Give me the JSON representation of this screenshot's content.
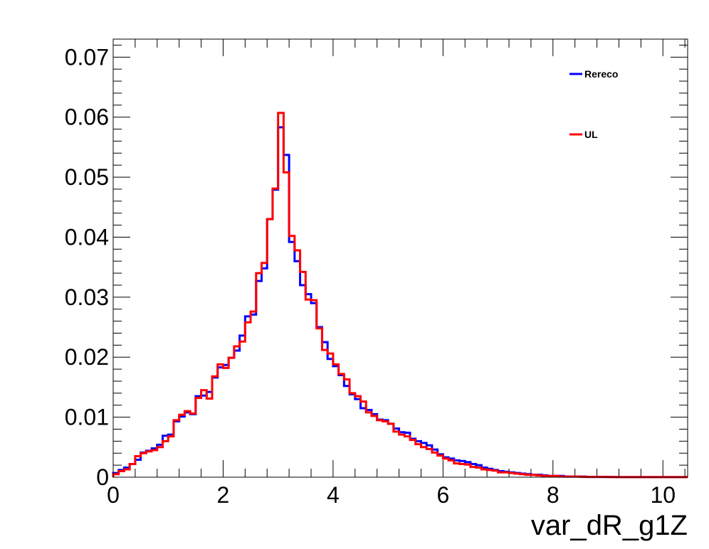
{
  "chart_data": {
    "type": "line",
    "title": "",
    "xlabel": "var_dR_g1Z",
    "ylabel": "",
    "xlim": [
      0,
      10.45
    ],
    "ylim": [
      0,
      0.073
    ],
    "x_ticks": [
      0,
      2,
      4,
      6,
      8,
      10
    ],
    "x_tick_labels": [
      "0",
      "2",
      "4",
      "6",
      "8",
      "10"
    ],
    "y_ticks": [
      0,
      0.01,
      0.02,
      0.03,
      0.04,
      0.05,
      0.06,
      0.07
    ],
    "y_tick_labels": [
      "0",
      "0.01",
      "0.02",
      "0.03",
      "0.04",
      "0.05",
      "0.06",
      "0.07"
    ],
    "legend_position": "top-right",
    "grid": false,
    "bin_width": 0.1,
    "series": [
      {
        "name": "Rereco",
        "color": "#0000ff",
        "values": [
          0.0007,
          0.0012,
          0.0016,
          0.0022,
          0.0029,
          0.0041,
          0.0044,
          0.0048,
          0.0054,
          0.0069,
          0.0071,
          0.0093,
          0.0101,
          0.0108,
          0.0105,
          0.0135,
          0.0136,
          0.0142,
          0.0166,
          0.0183,
          0.0187,
          0.0199,
          0.0211,
          0.0236,
          0.0268,
          0.0271,
          0.0327,
          0.0348,
          0.043,
          0.0479,
          0.0583,
          0.0537,
          0.0392,
          0.036,
          0.032,
          0.0305,
          0.029,
          0.025,
          0.0225,
          0.0197,
          0.0185,
          0.017,
          0.0152,
          0.0138,
          0.013,
          0.0115,
          0.0112,
          0.0105,
          0.0096,
          0.0095,
          0.0089,
          0.0081,
          0.0075,
          0.0074,
          0.0064,
          0.006,
          0.0057,
          0.0053,
          0.0046,
          0.0038,
          0.0033,
          0.0031,
          0.0028,
          0.0027,
          0.0025,
          0.0022,
          0.002,
          0.0016,
          0.0014,
          0.0012,
          0.001,
          0.0009,
          0.0008,
          0.0007,
          0.0006,
          0.0005,
          0.0004,
          0.0004,
          0.0003,
          0.0002,
          0.0002,
          0.0002,
          0.0001,
          0.0001,
          0.0001,
          0.0001,
          5e-05,
          5e-05,
          5e-05,
          5e-05,
          3e-05,
          3e-05,
          2e-05,
          2e-05,
          2e-05,
          1e-05,
          1e-05,
          1e-05,
          1e-05,
          1e-05,
          1e-05,
          1e-05,
          1e-05,
          1e-05,
          1e-05
        ]
      },
      {
        "name": "UL",
        "color": "#ff0000",
        "values": [
          0.0005,
          0.001,
          0.0013,
          0.0022,
          0.0035,
          0.004,
          0.0043,
          0.0045,
          0.005,
          0.006,
          0.0068,
          0.0095,
          0.0104,
          0.011,
          0.0106,
          0.0132,
          0.0145,
          0.0131,
          0.0168,
          0.0188,
          0.0182,
          0.0199,
          0.0218,
          0.0226,
          0.0258,
          0.0276,
          0.034,
          0.0357,
          0.043,
          0.0481,
          0.0607,
          0.0508,
          0.0402,
          0.0378,
          0.0342,
          0.0296,
          0.0295,
          0.0248,
          0.0212,
          0.0206,
          0.0188,
          0.0172,
          0.0163,
          0.014,
          0.0135,
          0.0126,
          0.0108,
          0.0102,
          0.0095,
          0.0093,
          0.0089,
          0.0076,
          0.0071,
          0.0068,
          0.0062,
          0.0055,
          0.005,
          0.0047,
          0.0041,
          0.0036,
          0.0031,
          0.0028,
          0.0023,
          0.0022,
          0.0021,
          0.0017,
          0.0016,
          0.0013,
          0.0012,
          0.0011,
          0.0008,
          0.0008,
          0.0007,
          0.0006,
          0.0005,
          0.0004,
          0.0004,
          0.0003,
          0.0002,
          0.0002,
          0.0002,
          0.0001,
          0.0001,
          0.0001,
          0.0001,
          5e-05,
          5e-05,
          5e-05,
          4e-05,
          3e-05,
          3e-05,
          2e-05,
          2e-05,
          2e-05,
          1e-05,
          1e-05,
          1e-05,
          1e-05,
          1e-05,
          1e-05,
          1e-05,
          1e-05,
          1e-05,
          1e-05,
          1e-05
        ]
      }
    ]
  }
}
